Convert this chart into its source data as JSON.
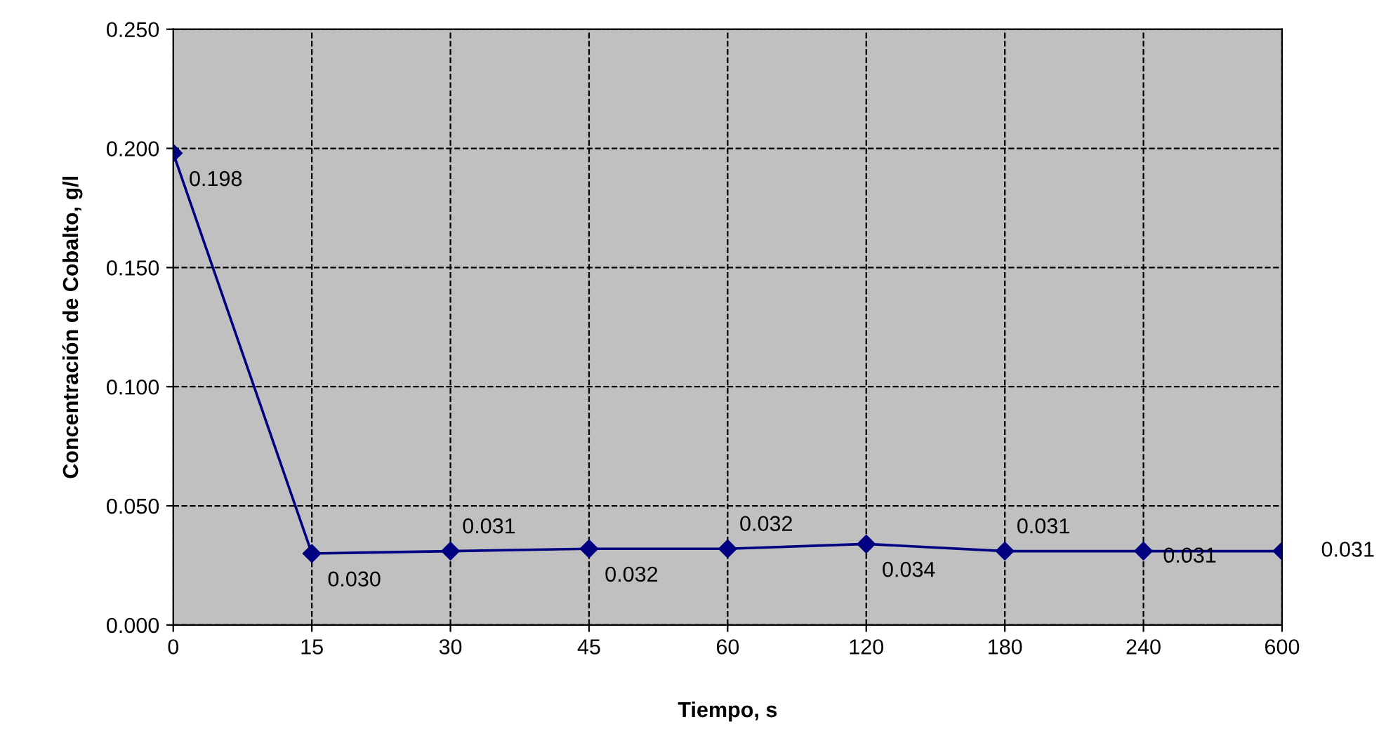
{
  "chart_data": {
    "type": "line",
    "xlabel": "Tiempo, s",
    "ylabel": "Concentración de Cobalto, g/l",
    "categories": [
      "0",
      "15",
      "30",
      "45",
      "60",
      "120",
      "180",
      "240",
      "600"
    ],
    "series": [
      {
        "color": "#000080",
        "values": [
          0.198,
          0.03,
          0.031,
          0.032,
          0.032,
          0.034,
          0.031,
          0.031,
          0.031
        ],
        "value_labels": [
          "0.198",
          "0.030",
          "0.031",
          "0.032",
          "0.032",
          "0.034",
          "0.031",
          "0.031",
          "0.031"
        ]
      }
    ],
    "ylim": [
      0,
      0.25
    ],
    "yticks": [
      {
        "value": 0,
        "label": "0.000"
      },
      {
        "value": 0.05,
        "label": "0.050"
      },
      {
        "value": 0.1,
        "label": "0.100"
      },
      {
        "value": 0.15,
        "label": "0.150"
      },
      {
        "value": 0.2,
        "label": "0.200"
      },
      {
        "value": 0.25,
        "label": "0.250"
      }
    ],
    "grid": true,
    "marker": "diamond",
    "line_style": "solid",
    "legend": false
  }
}
